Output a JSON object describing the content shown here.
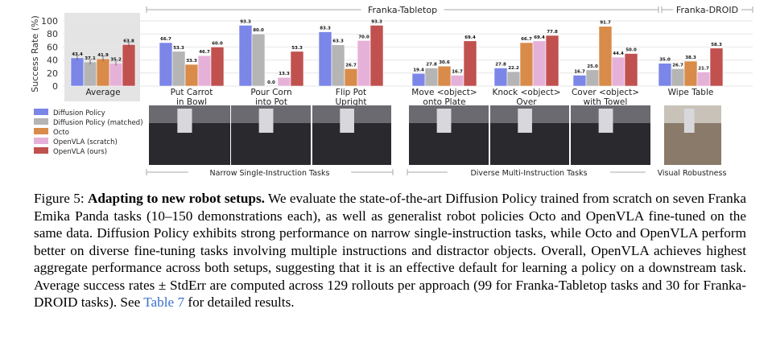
{
  "chart_data": {
    "type": "bar",
    "ylabel": "Success Rate (%)",
    "ylim": [
      0,
      100
    ],
    "yticks": [
      0,
      20,
      40,
      60,
      80,
      100
    ],
    "grid": true,
    "categories": [
      [
        "Average"
      ],
      [
        "Put Carrot",
        "in Bowl"
      ],
      [
        "Pour Corn",
        "into Pot"
      ],
      [
        "Flip Pot",
        "Upright"
      ],
      [
        "Move <object>",
        "onto Plate"
      ],
      [
        "Knock <object>",
        "Over"
      ],
      [
        "Cover <object>",
        "with Towel"
      ],
      [
        "Wipe Table"
      ]
    ],
    "series": [
      {
        "name": "Diffusion Policy",
        "color": "#7b86e8",
        "values": [
          43.4,
          66.7,
          93.3,
          83.3,
          19.4,
          27.8,
          16.7,
          35.0
        ]
      },
      {
        "name": "Diffusion Policy (matched)",
        "color": "#b5b5b5",
        "values": [
          37.1,
          53.3,
          80.0,
          63.3,
          27.8,
          22.2,
          25.0,
          26.7
        ]
      },
      {
        "name": "Octo",
        "color": "#d98b4a",
        "values": [
          41.9,
          33.3,
          0.0,
          26.7,
          30.6,
          66.7,
          91.7,
          38.3
        ]
      },
      {
        "name": "OpenVLA (scratch)",
        "color": "#e6b1d8",
        "values": [
          35.2,
          46.7,
          13.3,
          70.0,
          16.7,
          69.4,
          44.4,
          21.7
        ]
      },
      {
        "name": "OpenVLA (ours)",
        "color": "#c0514f",
        "values": [
          63.8,
          60.0,
          53.3,
          93.3,
          69.4,
          77.8,
          50.0,
          58.3
        ]
      }
    ],
    "legend_placement": "bottom-left",
    "top_groups": [
      "Franka-Tabletop",
      "Franka-DROID"
    ],
    "bottom_groups": [
      "Narrow Single-Instruction Tasks",
      "Diverse Multi-Instruction Tasks",
      "Visual Robustness"
    ]
  },
  "caption": {
    "label": "Figure 5:",
    "title": "Adapting to new robot setups.",
    "body": " We evaluate the state-of-the-art Diffusion Policy trained from scratch on seven Franka Emika Panda tasks (10–150 demonstrations each), as well as generalist robot policies Octo and OpenVLA fine-tuned on the same data. Diffusion Policy exhibits strong performance on narrow single-instruction tasks, while Octo and OpenVLA perform better on diverse fine-tuning tasks involving multiple instructions and distractor objects. Overall, OpenVLA achieves highest aggregate performance across both setups, suggesting that it is an effective default for learning a policy on a downstream task. Average success rates ± StdErr are computed across 129 rollouts per approach (99 for Franka-Tabletop tasks and 30 for Franka-DROID tasks). See ",
    "link": "Table 7",
    "tail": " for detailed results."
  }
}
